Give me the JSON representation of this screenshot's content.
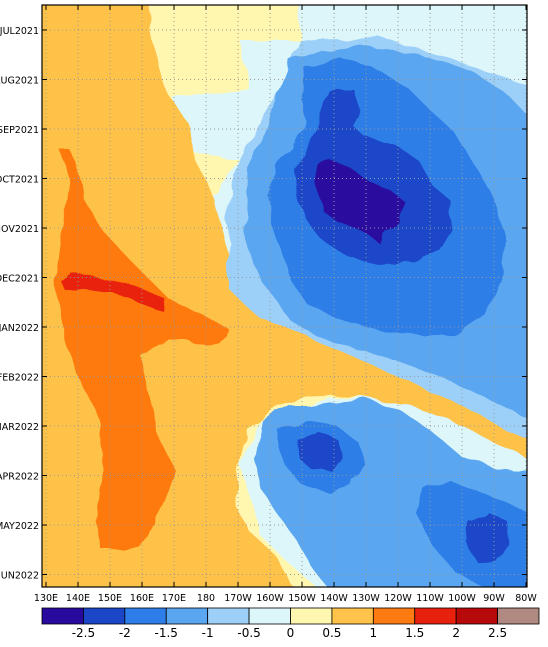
{
  "chart_data": {
    "type": "heatmap",
    "title": "",
    "xlabel": "",
    "ylabel": "",
    "x_tick_labels": [
      "130E",
      "140E",
      "150E",
      "160E",
      "170E",
      "180",
      "170W",
      "160W",
      "150W",
      "140W",
      "130W",
      "120W",
      "110W",
      "100W",
      "90W",
      "80W"
    ],
    "y_tick_labels": [
      "JUL2021",
      "AUG2021",
      "SEP2021",
      "OCT2021",
      "NOV2021",
      "DEC2021",
      "JAN2022",
      "FEB2022",
      "MAR2022",
      "APR2022",
      "MAY2022",
      "JUN2022"
    ],
    "x_range_deg_east": [
      130,
      280
    ],
    "y_range": [
      "JUL2021",
      "JUN2022"
    ],
    "grid": true,
    "colorbar": {
      "placement": "bottom",
      "tick_labels": [
        "-2.5",
        "-2",
        "-1.5",
        "-1",
        "-0.5",
        "0",
        "0.5",
        "1",
        "1.5",
        "2",
        "2.5"
      ],
      "boundaries": [
        -3,
        -2.5,
        -2,
        -1.5,
        -1,
        -0.5,
        0,
        0.5,
        1,
        1.5,
        2,
        2.5,
        3
      ],
      "colors": [
        "#2a0a9e",
        "#1b46c8",
        "#2d7ee8",
        "#5aa6f0",
        "#9dd0f8",
        "#dcf6fa",
        "#fff7b0",
        "#ffc24a",
        "#ff7a10",
        "#e8200e",
        "#b8090a",
        "#b08a80"
      ]
    },
    "features": [
      {
        "name": "warm-pool",
        "value": 1.0,
        "extent_lon": [
          130,
          175
        ],
        "extent_time": [
          "JUL2021",
          "JUN2022"
        ]
      },
      {
        "name": "west-strong-warm",
        "value": 1.5,
        "extent_lon": [
          132,
          172
        ],
        "extent_time": [
          "OCT2021",
          "MAY2022"
        ]
      },
      {
        "name": "dec2021-peak",
        "value": 2.0,
        "extent_lon": [
          134,
          163
        ],
        "extent_time": [
          "DEC2021",
          "JAN2022"
        ]
      },
      {
        "name": "central-east-cold-core",
        "value": -2.5,
        "extent_lon": [
          221,
          248
        ],
        "extent_time": [
          "OCT2021",
          "NOV2021"
        ]
      },
      {
        "name": "central-east-cold",
        "value": -2.0,
        "extent_lon": [
          210,
          262
        ],
        "extent_time": [
          "AUG2021",
          "JAN2022"
        ]
      },
      {
        "name": "cold-2022",
        "value": -1.5,
        "extent_lon": [
          183,
          280
        ],
        "extent_time": [
          "MAR2022",
          "JUN2022"
        ]
      },
      {
        "name": "warm-tongue-2022",
        "value": 0.5,
        "extent_lon": [
          175,
          280
        ],
        "extent_time": [
          "FEB2022",
          "MAR2022"
        ]
      }
    ]
  }
}
